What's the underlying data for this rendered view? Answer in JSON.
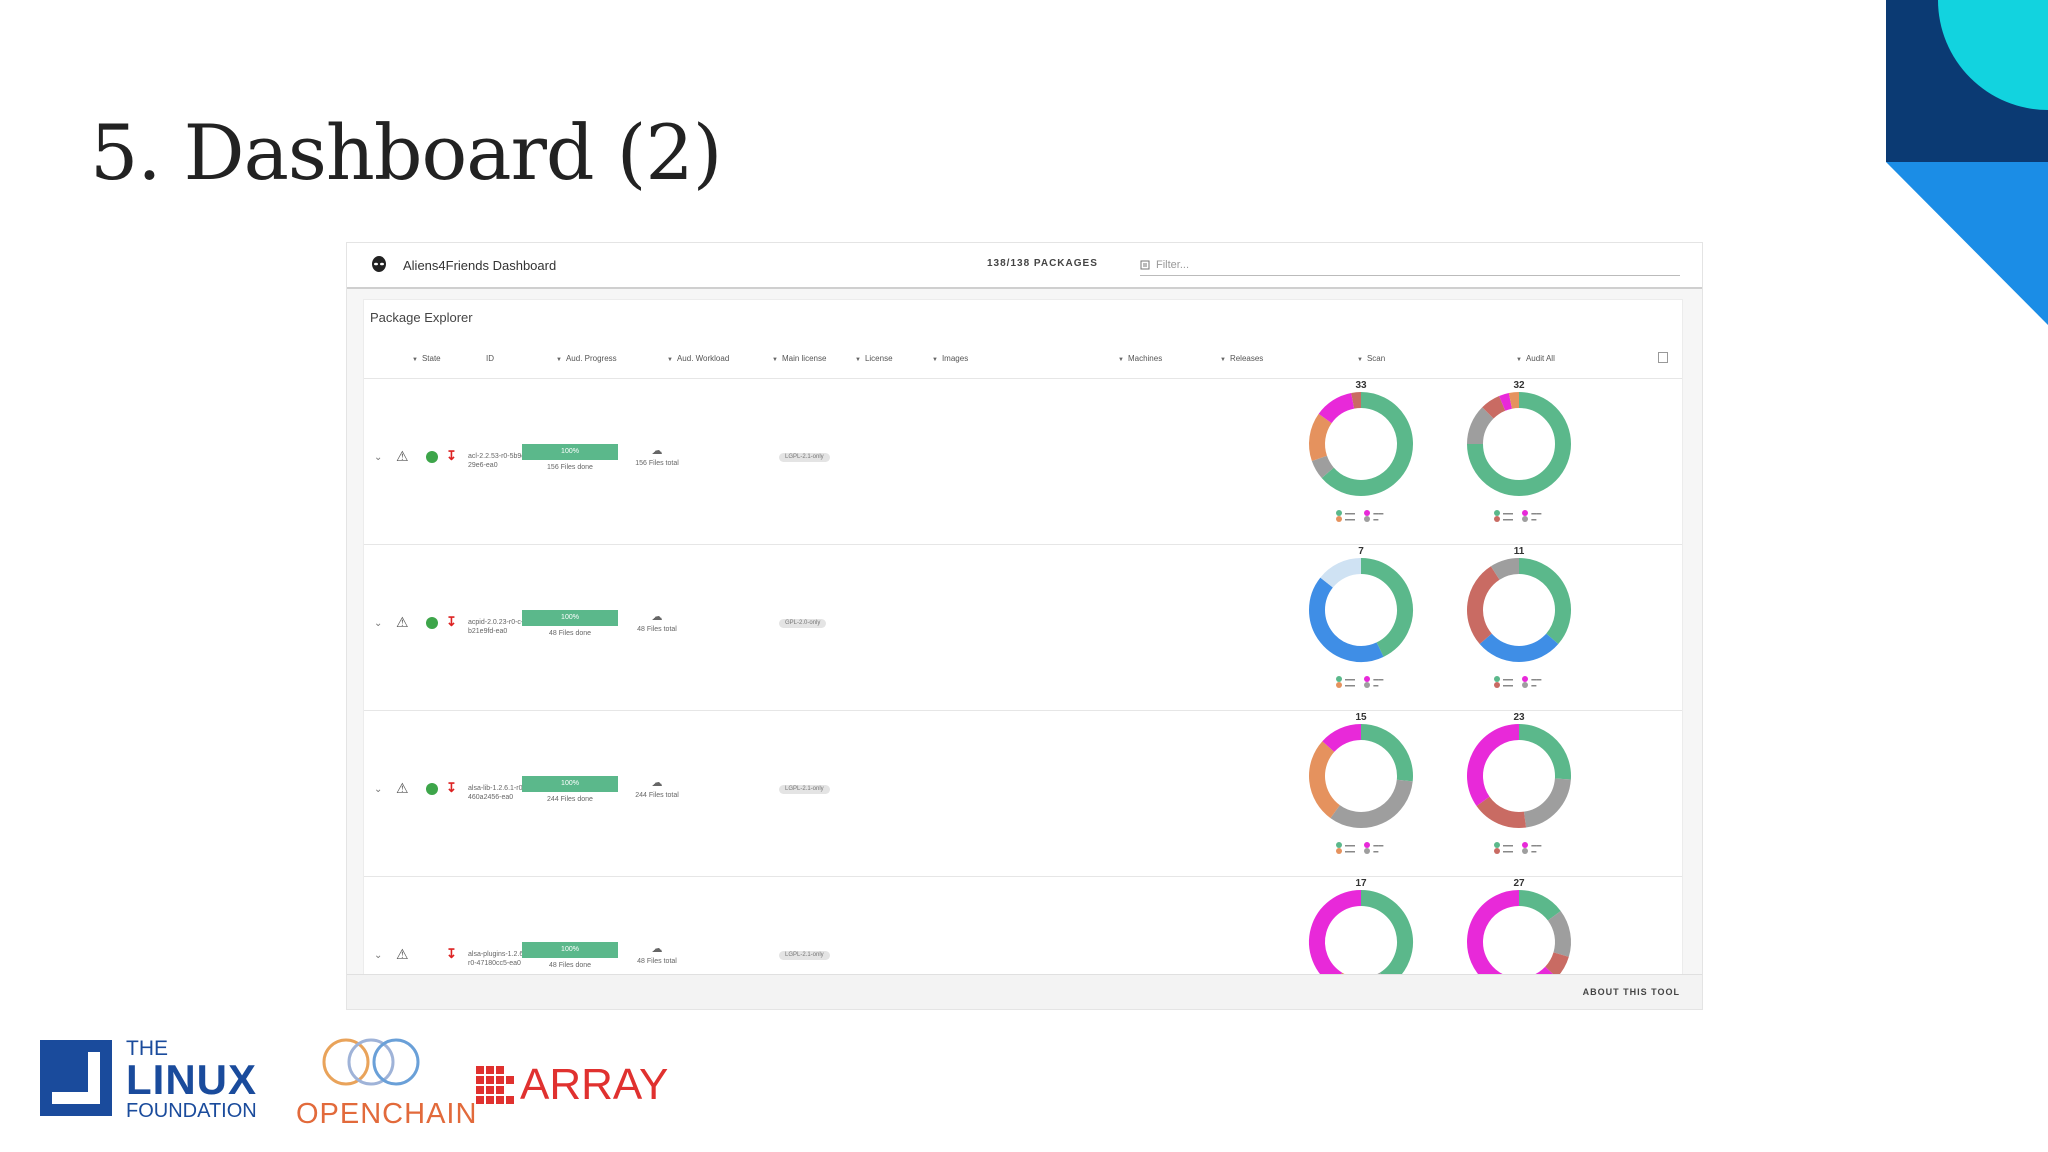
{
  "slide": {
    "title": "5. Dashboard (2)"
  },
  "colors": {
    "title": "#222222",
    "accent_green": "#5bb88b",
    "donut_green": "#5bb88b",
    "donut_magenta": "#e829d9",
    "donut_gray": "#9e9e9e",
    "donut_orange": "#e5925e",
    "donut_red": "#c96b63",
    "donut_blue": "#3f8ee6",
    "donut_lightblue": "#cfe2f3",
    "donut_lime": "#9ee35a",
    "linux_blue": "#1a4b9c",
    "openchain_orange": "#e26a3b",
    "array_red": "#e0312f"
  },
  "app": {
    "title": "Aliens4Friends Dashboard",
    "package_count": "138/138 PACKAGES",
    "filter_placeholder": "Filter...",
    "panel_title": "Package Explorer",
    "about": "ABOUT THIS TOOL",
    "columns": [
      "State",
      "ID",
      "Aud. Progress",
      "Aud. Workload",
      "Main license",
      "License",
      "Images",
      "Machines",
      "Releases",
      "Scan",
      "Audit All"
    ]
  },
  "rows": [
    {
      "name": "acl-2.2.53-r0-5b9c-29e6-ea0",
      "progress": "100%",
      "progress_text": "156 Files done",
      "workload_text": "156 Files total",
      "license": "LGPL-2.1-only",
      "scan_total": "33",
      "audit_total": "32",
      "has_shield": true,
      "scan_values": [
        21,
        2,
        5,
        4,
        1
      ],
      "audit_values": [
        24,
        4,
        2,
        1,
        1
      ]
    },
    {
      "name": "acpid-2.0.23-r0-c-b21e9fd-ea0",
      "progress": "100%",
      "progress_text": "48 Files done",
      "workload_text": "48 Files total",
      "license": "GPL-2.0-only",
      "scan_total": "7",
      "audit_total": "11",
      "has_shield": true,
      "scan_values": [
        3,
        3,
        1
      ],
      "audit_values": [
        4,
        3,
        3,
        1
      ]
    },
    {
      "name": "alsa-lib-1.2.6.1-r0-460a2456-ea0",
      "progress": "100%",
      "progress_text": "244 Files done",
      "workload_text": "244 Files total",
      "license": "LGPL-2.1-only",
      "scan_total": "15",
      "audit_total": "23",
      "has_shield": true,
      "scan_values": [
        4,
        5,
        4,
        2
      ],
      "audit_values": [
        6,
        5,
        4,
        8
      ]
    },
    {
      "name": "alsa-plugins-1.2.6-r0-47180cc5-ea0",
      "progress": "100%",
      "progress_text": "48 Files done",
      "workload_text": "48 Files total",
      "license": "LGPL-2.1-only",
      "scan_total": "17",
      "audit_total": "27",
      "has_shield": false,
      "scan_values": [
        7,
        2,
        1,
        7
      ],
      "audit_values": [
        4,
        4,
        2,
        17
      ]
    }
  ],
  "logos": {
    "linux_the": "THE",
    "linux_linux": "LINUX",
    "linux_foundation": "FOUNDATION",
    "openchain": "OPENCHAIN",
    "array": "ARRAY"
  }
}
